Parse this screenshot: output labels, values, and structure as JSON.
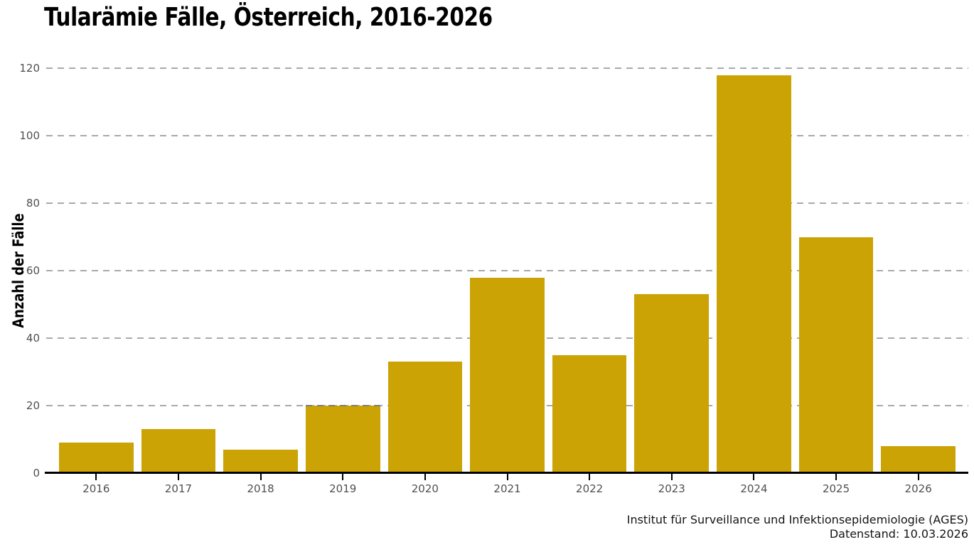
{
  "chart_data": {
    "type": "bar",
    "title": "Tularämie Fälle, Österreich, 2016-2026",
    "ylabel": "Anzahl der Fälle",
    "xlabel": "",
    "categories": [
      "2016",
      "2017",
      "2018",
      "2019",
      "2020",
      "2021",
      "2022",
      "2023",
      "2024",
      "2025",
      "2026"
    ],
    "values": [
      9,
      13,
      7,
      20,
      33,
      58,
      35,
      53,
      118,
      70,
      8
    ],
    "ylim": [
      0,
      120
    ],
    "yticks": [
      0,
      20,
      40,
      60,
      80,
      100,
      120
    ],
    "grid": "horizontal-dashed",
    "legend_position": "none",
    "bar_color": "#CBA304",
    "source_line1": "Institut für Surveillance und Infektionsepidemiologie (AGES)",
    "source_line2": "Datenstand: 10.03.2026"
  },
  "colors": {
    "bar": "#CBA304",
    "gridline": "#A9A9A9",
    "axis_line": "#000000",
    "tick_label": "#4F4F4F",
    "title_text": "#000000",
    "source_text": "#141414",
    "background": "#FFFFFF"
  }
}
